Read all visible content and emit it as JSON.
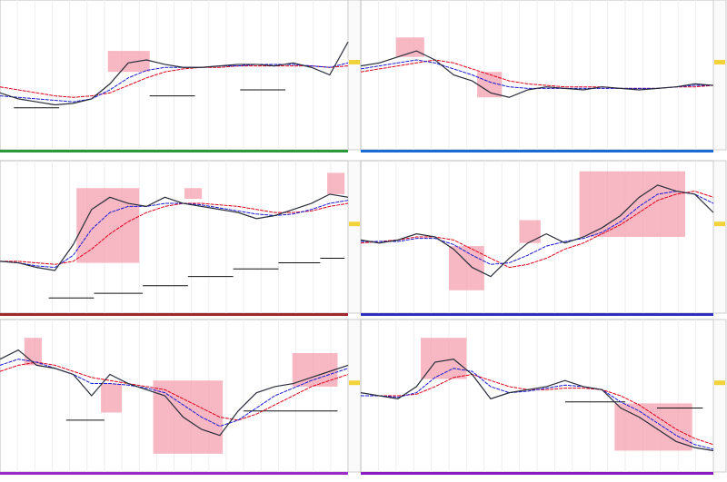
{
  "colors": {
    "price": "#2a2d3a",
    "fast": "#1a1ad4",
    "slow": "#e0001b",
    "zone": "#f59aaa",
    "level": "#111111"
  },
  "panels": [
    {
      "price": [
        38,
        34,
        32,
        30,
        31,
        34,
        44,
        58,
        60,
        57,
        55,
        55,
        56,
        57,
        57,
        56,
        58,
        55,
        50,
        72
      ],
      "fast": [
        36,
        35,
        34,
        33,
        32,
        34,
        40,
        48,
        53,
        55,
        55,
        55,
        56,
        56,
        57,
        57,
        57,
        56,
        55,
        58
      ],
      "slow": [
        42,
        40,
        38,
        36,
        35,
        36,
        38,
        43,
        48,
        52,
        54,
        55,
        55,
        56,
        56,
        56,
        56,
        56,
        55,
        56
      ],
      "zones": [
        [
          31,
          43,
          52,
          66
        ]
      ],
      "levels": [
        [
          4,
          17,
          28
        ],
        [
          43,
          56,
          36
        ],
        [
          69,
          82,
          40
        ]
      ]
    },
    {
      "price": [
        56,
        58,
        62,
        66,
        60,
        50,
        46,
        38,
        35,
        40,
        42,
        41,
        40,
        42,
        41,
        40,
        41,
        42,
        44,
        43
      ],
      "fast": [
        54,
        56,
        58,
        60,
        58,
        54,
        50,
        45,
        42,
        41,
        41,
        41,
        41,
        41,
        41,
        41,
        41,
        42,
        43,
        43
      ],
      "slow": [
        52,
        54,
        56,
        58,
        60,
        58,
        54,
        50,
        46,
        44,
        43,
        42,
        42,
        42,
        41,
        41,
        41,
        42,
        42,
        43
      ],
      "zones": [
        [
          10,
          18,
          62,
          75
        ],
        [
          33,
          40,
          35,
          52
        ]
      ],
      "levels": []
    },
    {
      "price": [
        34,
        33,
        30,
        28,
        45,
        68,
        76,
        72,
        70,
        76,
        72,
        70,
        68,
        66,
        62,
        64,
        68,
        72,
        78,
        76
      ],
      "fast": [
        34,
        33,
        31,
        30,
        38,
        55,
        66,
        70,
        70,
        72,
        72,
        71,
        69,
        67,
        65,
        64,
        65,
        68,
        72,
        74
      ],
      "slow": [
        34,
        34,
        33,
        32,
        34,
        42,
        52,
        60,
        66,
        70,
        72,
        72,
        71,
        70,
        68,
        66,
        66,
        67,
        70,
        72
      ],
      "zones": [
        [
          22,
          40,
          33,
          82
        ],
        [
          53,
          58,
          75,
          82
        ],
        [
          94,
          99,
          78,
          92
        ]
      ],
      "levels": [
        [
          14,
          27,
          10
        ],
        [
          27,
          41,
          13
        ],
        [
          41,
          54,
          18
        ],
        [
          54,
          67,
          24
        ],
        [
          67,
          80,
          29
        ],
        [
          80,
          92,
          33
        ],
        [
          92,
          99,
          36
        ]
      ]
    },
    {
      "price": [
        48,
        46,
        48,
        52,
        50,
        42,
        30,
        24,
        36,
        46,
        52,
        46,
        50,
        56,
        64,
        76,
        84,
        80,
        78,
        66
      ],
      "fast": [
        47,
        47,
        47,
        49,
        49,
        45,
        38,
        32,
        33,
        38,
        44,
        47,
        49,
        53,
        60,
        70,
        78,
        80,
        78,
        72
      ],
      "slow": [
        46,
        47,
        48,
        50,
        50,
        48,
        42,
        36,
        30,
        32,
        36,
        42,
        46,
        52,
        58,
        66,
        74,
        78,
        80,
        76
      ],
      "zones": [
        [
          25,
          35,
          15,
          44
        ],
        [
          45,
          51,
          46,
          61
        ],
        [
          62,
          92,
          50,
          93
        ]
      ],
      "levels": []
    },
    {
      "price": [
        74,
        80,
        70,
        68,
        64,
        50,
        64,
        58,
        54,
        50,
        36,
        28,
        24,
        40,
        52,
        56,
        58,
        62,
        66,
        70
      ],
      "fast": [
        70,
        74,
        72,
        68,
        64,
        58,
        58,
        57,
        55,
        52,
        44,
        36,
        30,
        34,
        42,
        50,
        55,
        60,
        64,
        68
      ],
      "slow": [
        66,
        70,
        72,
        70,
        66,
        62,
        60,
        58,
        56,
        54,
        48,
        42,
        36,
        34,
        38,
        44,
        50,
        56,
        60,
        64
      ],
      "zones": [
        [
          7,
          12,
          70,
          88
        ],
        [
          29,
          35,
          39,
          58
        ],
        [
          44,
          64,
          12,
          60
        ],
        [
          84,
          97,
          56,
          78
        ]
      ],
      "levels": [
        [
          19,
          30,
          34
        ],
        [
          70,
          97,
          40
        ]
      ]
    },
    {
      "price": [
        52,
        50,
        48,
        56,
        72,
        74,
        64,
        48,
        52,
        54,
        56,
        60,
        56,
        54,
        42,
        36,
        28,
        20,
        16,
        14
      ],
      "fast": [
        50,
        50,
        49,
        52,
        62,
        68,
        66,
        56,
        52,
        53,
        55,
        57,
        56,
        54,
        46,
        40,
        32,
        24,
        18,
        15
      ],
      "slow": [
        50,
        50,
        50,
        51,
        56,
        62,
        64,
        60,
        56,
        54,
        54,
        55,
        55,
        54,
        50,
        44,
        36,
        28,
        22,
        18
      ],
      "zones": [
        [
          17,
          30,
          61,
          88
        ],
        [
          72,
          94,
          14,
          45
        ]
      ],
      "levels": [
        [
          58,
          75,
          46
        ],
        [
          84,
          97,
          42
        ]
      ]
    }
  ]
}
